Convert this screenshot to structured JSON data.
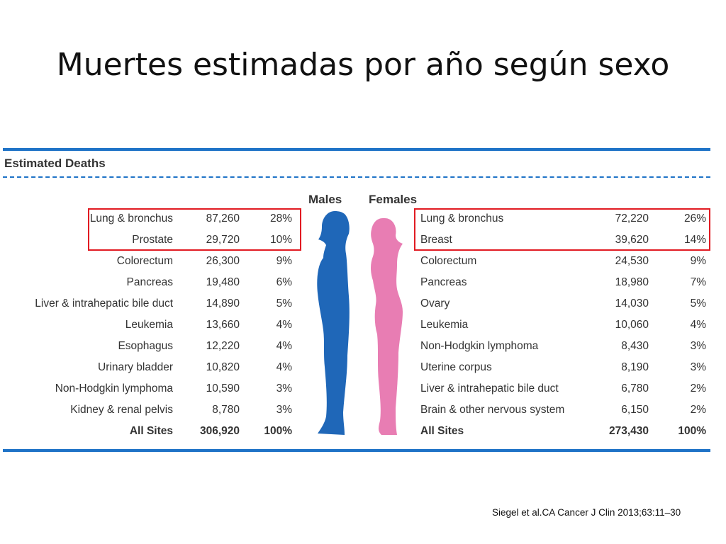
{
  "slide": {
    "title": "Muertes estimadas por año según sexo",
    "citation": "Siegel et al.CA Cancer J Clin 2013;63:11–30"
  },
  "figure": {
    "heading": "Estimated Deaths",
    "males": {
      "label": "Males",
      "color": "#1f67b8",
      "rows": [
        {
          "site": "Lung & bronchus",
          "deaths": "87,260",
          "percent": "28%"
        },
        {
          "site": "Prostate",
          "deaths": "29,720",
          "percent": "10%"
        },
        {
          "site": "Colorectum",
          "deaths": "26,300",
          "percent": "9%"
        },
        {
          "site": "Pancreas",
          "deaths": "19,480",
          "percent": "6%"
        },
        {
          "site": "Liver & intrahepatic bile duct",
          "deaths": "14,890",
          "percent": "5%"
        },
        {
          "site": "Leukemia",
          "deaths": "13,660",
          "percent": "4%"
        },
        {
          "site": "Esophagus",
          "deaths": "12,220",
          "percent": "4%"
        },
        {
          "site": "Urinary bladder",
          "deaths": "10,820",
          "percent": "4%"
        },
        {
          "site": "Non-Hodgkin lymphoma",
          "deaths": "10,590",
          "percent": "3%"
        },
        {
          "site": "Kidney & renal pelvis",
          "deaths": "8,780",
          "percent": "3%"
        }
      ],
      "total": {
        "site": "All Sites",
        "deaths": "306,920",
        "percent": "100%"
      }
    },
    "females": {
      "label": "Females",
      "color": "#e87db3",
      "rows": [
        {
          "site": "Lung & bronchus",
          "deaths": "72,220",
          "percent": "26%"
        },
        {
          "site": "Breast",
          "deaths": "39,620",
          "percent": "14%"
        },
        {
          "site": "Colorectum",
          "deaths": "24,530",
          "percent": "9%"
        },
        {
          "site": "Pancreas",
          "deaths": "18,980",
          "percent": "7%"
        },
        {
          "site": "Ovary",
          "deaths": "14,030",
          "percent": "5%"
        },
        {
          "site": "Leukemia",
          "deaths": "10,060",
          "percent": "4%"
        },
        {
          "site": "Non-Hodgkin lymphoma",
          "deaths": "8,430",
          "percent": "3%"
        },
        {
          "site": "Uterine corpus",
          "deaths": "8,190",
          "percent": "3%"
        },
        {
          "site": "Liver & intrahepatic bile duct",
          "deaths": "6,780",
          "percent": "2%"
        },
        {
          "site": "Brain & other nervous system",
          "deaths": "6,150",
          "percent": "2%"
        }
      ],
      "total": {
        "site": "All Sites",
        "deaths": "273,430",
        "percent": "100%"
      }
    },
    "rule_color": "#1f73c7",
    "highlight_color": "#e11b22",
    "highlighted_rows": 2
  }
}
